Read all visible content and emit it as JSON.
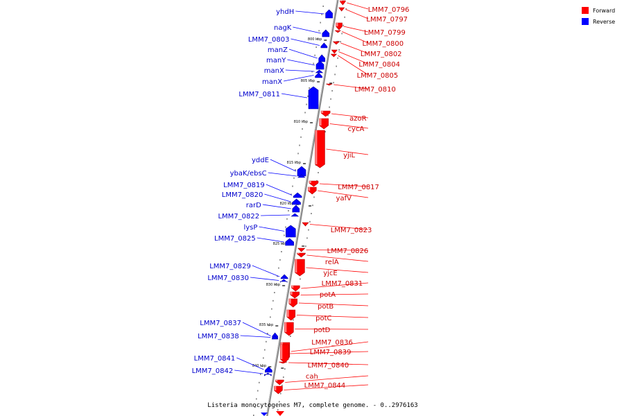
{
  "caption": "Listeria monocytogenes M7, complete genome. - 0..2976163",
  "legend": {
    "forward_label": "Forward",
    "reverse_label": "Reverse",
    "forward_color": "#ff0000",
    "reverse_color": "#0000ff"
  },
  "colors": {
    "backbone": "#888888",
    "forward_fill": "#ff0000",
    "reverse_fill": "#0000ff",
    "forward_label": "#cc0000",
    "reverse_label": "#0000cc"
  },
  "scale_marks": [
    "800 kbp",
    "805 kbp",
    "810 kbp",
    "815 kbp",
    "820 kbp",
    "825 kbp",
    "830 kbp",
    "835 kbp",
    "840 kbp"
  ],
  "forward_genes": [
    "LMM7_0796",
    "LMM7_0797",
    "LMM7_0799",
    "LMM7_0800",
    "LMM7_0802",
    "LMM7_0804",
    "LMM7_0805",
    "LMM7_0810",
    "azoR",
    "cycA",
    "yjiL",
    "LMM7_0817",
    "yafV",
    "LMM7_0823",
    "LMM7_0826",
    "relA",
    "yjcE",
    "LMM7_0831",
    "potA",
    "potB",
    "potC",
    "potD",
    "LMM7_0836",
    "LMM7_0839",
    "LMM7_0840",
    "cah",
    "LMM7_0844"
  ],
  "reverse_genes": [
    "yhdH",
    "nagK",
    "LMM7_0803",
    "manZ",
    "manY",
    "manX",
    "manX",
    "LMM7_0811",
    "yddE",
    "ybaK/ebsC",
    "LMM7_0819",
    "LMM7_0820",
    "rarD",
    "LMM7_0822",
    "lysP",
    "LMM7_0825",
    "LMM7_0829",
    "LMM7_0830",
    "LMM7_0837",
    "LMM7_0838",
    "LMM7_0841",
    "LMM7_0842"
  ]
}
